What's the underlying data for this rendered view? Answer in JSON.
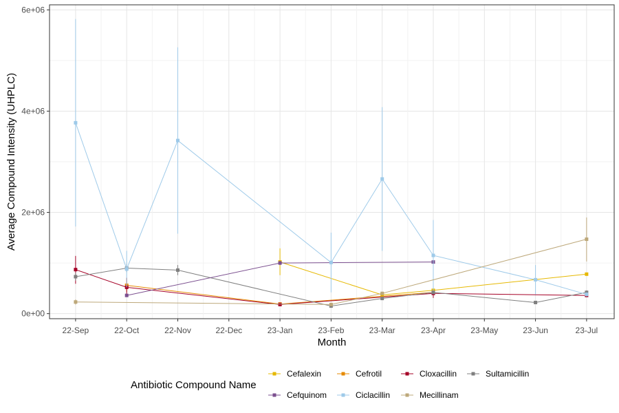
{
  "chart_data": {
    "type": "line",
    "title": "",
    "xlabel": "Month",
    "ylabel": "Average Compound Intensity (UHPLC)",
    "categories": [
      "22-Sep",
      "22-Oct",
      "22-Nov",
      "22-Dec",
      "23-Jan",
      "23-Feb",
      "23-Mar",
      "23-Apr",
      "23-May",
      "23-Jun",
      "23-Jul"
    ],
    "ylim": [
      -100000,
      6100000
    ],
    "yticks": [
      {
        "value": 0,
        "label": "0e+00"
      },
      {
        "value": 2000000,
        "label": "2e+06"
      },
      {
        "value": 4000000,
        "label": "4e+06"
      },
      {
        "value": 6000000,
        "label": "6e+06"
      }
    ],
    "grid": true,
    "error_bars": true,
    "legend": {
      "title": "Antibiotic Compound Name",
      "position": "bottom"
    },
    "series": [
      {
        "name": "Cefalexin",
        "color": "#e6b800",
        "points": [
          {
            "x": 4,
            "y": 1020000,
            "lo": 760000,
            "hi": 1290000
          },
          {
            "x": 6,
            "y": 370000,
            "lo": 340000,
            "hi": 400000
          },
          {
            "x": 7,
            "y": 460000,
            "lo": 390000,
            "hi": 530000
          },
          {
            "x": 10,
            "y": 780000,
            "lo": 750000,
            "hi": 810000
          }
        ]
      },
      {
        "name": "Cefrotil",
        "color": "#e68a00",
        "points": [
          {
            "x": 1,
            "y": 560000,
            "lo": 430000,
            "hi": 700000
          },
          {
            "x": 4,
            "y": 190000,
            "lo": 170000,
            "hi": 210000
          },
          {
            "x": 7,
            "y": 420000,
            "lo": 380000,
            "hi": 460000
          }
        ]
      },
      {
        "name": "Cloxacillin",
        "color": "#a50026",
        "points": [
          {
            "x": 0,
            "y": 870000,
            "lo": 590000,
            "hi": 1140000
          },
          {
            "x": 1,
            "y": 520000,
            "lo": 330000,
            "hi": 710000
          },
          {
            "x": 4,
            "y": 180000,
            "lo": 150000,
            "hi": 210000
          },
          {
            "x": 7,
            "y": 400000,
            "lo": 310000,
            "hi": 490000
          },
          {
            "x": 10,
            "y": 360000,
            "lo": 330000,
            "hi": 390000
          }
        ]
      },
      {
        "name": "Sultamicillin",
        "color": "#7f7f7f",
        "points": [
          {
            "x": 0,
            "y": 730000,
            "lo": 650000,
            "hi": 810000
          },
          {
            "x": 1,
            "y": 900000,
            "lo": 820000,
            "hi": 980000
          },
          {
            "x": 2,
            "y": 860000,
            "lo": 760000,
            "hi": 960000
          },
          {
            "x": 5,
            "y": 150000,
            "lo": 120000,
            "hi": 180000
          },
          {
            "x": 6,
            "y": 300000,
            "lo": 270000,
            "hi": 330000
          },
          {
            "x": 7,
            "y": 420000,
            "lo": 380000,
            "hi": 460000
          },
          {
            "x": 9,
            "y": 220000,
            "lo": 200000,
            "hi": 240000
          },
          {
            "x": 10,
            "y": 420000,
            "lo": 380000,
            "hi": 460000
          }
        ]
      },
      {
        "name": "Cefquinom",
        "color": "#7b4f8f",
        "points": [
          {
            "x": 1,
            "y": 360000,
            "lo": 330000,
            "hi": 390000
          },
          {
            "x": 4,
            "y": 1000000,
            "lo": 960000,
            "hi": 1040000
          },
          {
            "x": 7,
            "y": 1020000,
            "lo": 980000,
            "hi": 1060000
          }
        ]
      },
      {
        "name": "Ciclacillin",
        "color": "#9ecae9",
        "points": [
          {
            "x": 0,
            "y": 3770000,
            "lo": 1720000,
            "hi": 5820000
          },
          {
            "x": 1,
            "y": 880000,
            "lo": 520000,
            "hi": 1240000
          },
          {
            "x": 2,
            "y": 3420000,
            "lo": 1580000,
            "hi": 5260000
          },
          {
            "x": 5,
            "y": 1010000,
            "lo": 420000,
            "hi": 1600000
          },
          {
            "x": 6,
            "y": 2660000,
            "lo": 1240000,
            "hi": 4080000
          },
          {
            "x": 7,
            "y": 1150000,
            "lo": 450000,
            "hi": 1850000
          },
          {
            "x": 9,
            "y": 670000,
            "lo": 380000,
            "hi": 960000
          },
          {
            "x": 10,
            "y": 380000,
            "lo": 340000,
            "hi": 420000
          }
        ]
      },
      {
        "name": "Mecillinam",
        "color": "#bda87a",
        "points": [
          {
            "x": 0,
            "y": 230000,
            "lo": 180000,
            "hi": 280000
          },
          {
            "x": 5,
            "y": 180000,
            "lo": 150000,
            "hi": 210000
          },
          {
            "x": 6,
            "y": 400000,
            "lo": 370000,
            "hi": 430000
          },
          {
            "x": 10,
            "y": 1470000,
            "lo": 1030000,
            "hi": 1900000
          }
        ]
      }
    ]
  }
}
